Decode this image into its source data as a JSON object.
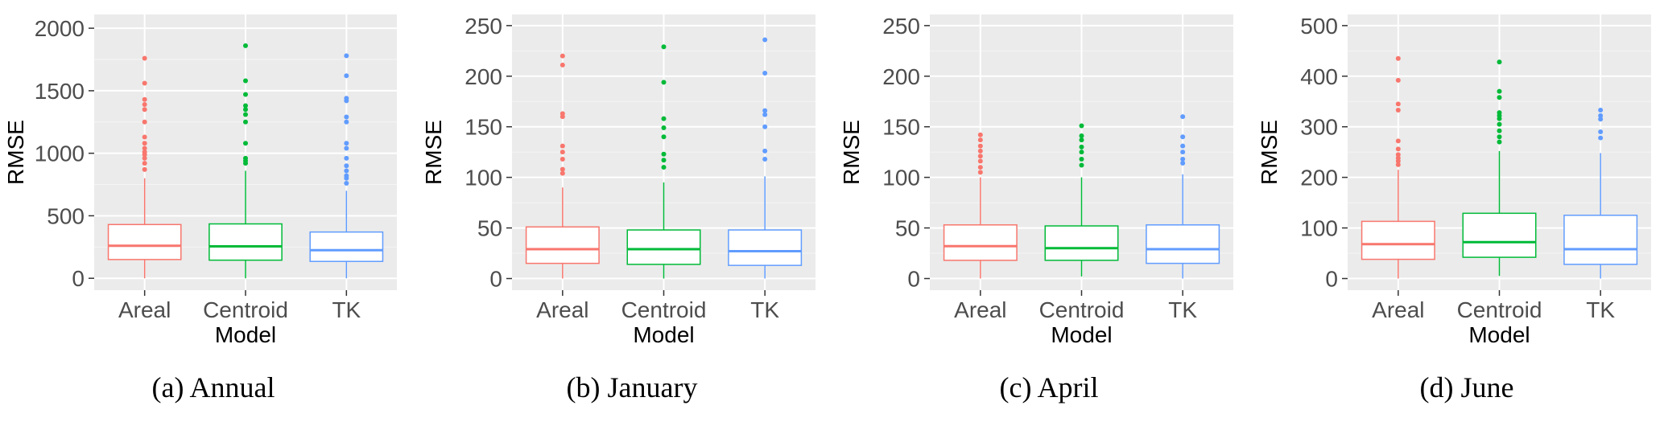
{
  "style": {
    "panel_bg": "#ebebeb",
    "grid_major": "#ffffff",
    "grid_minor": "#f5f5f5",
    "series_colors": {
      "Areal": "#f8766d",
      "Centroid": "#00ba38",
      "TK": "#619cff"
    }
  },
  "chart_data": [
    {
      "type": "box",
      "caption": "(a) Annual",
      "xlabel": "Model",
      "ylabel": "RMSE",
      "categories": [
        "Areal",
        "Centroid",
        "TK"
      ],
      "ylim": [
        -95,
        2110
      ],
      "yticks": [
        0,
        500,
        1000,
        1500,
        2000
      ],
      "yticklabels": [
        "0",
        "500",
        "1000",
        "1500",
        "2000"
      ],
      "boxes": [
        {
          "name": "Areal",
          "low": 0,
          "q1": 150,
          "median": 260,
          "q3": 430,
          "high": 800,
          "outliers": [
            870,
            920,
            960,
            990,
            1010,
            1040,
            1080,
            1130,
            1250,
            1350,
            1390,
            1430,
            1560,
            1760
          ]
        },
        {
          "name": "Centroid",
          "low": 0,
          "q1": 145,
          "median": 255,
          "q3": 435,
          "high": 860,
          "outliers": [
            920,
            940,
            960,
            1080,
            1250,
            1310,
            1350,
            1380,
            1470,
            1580,
            1860
          ]
        },
        {
          "name": "TK",
          "low": 0,
          "q1": 135,
          "median": 225,
          "q3": 370,
          "high": 700,
          "outliers": [
            760,
            800,
            820,
            860,
            900,
            960,
            1040,
            1080,
            1250,
            1290,
            1420,
            1440,
            1620,
            1780
          ]
        }
      ]
    },
    {
      "type": "box",
      "caption": "(b) January",
      "xlabel": "Model",
      "ylabel": "RMSE",
      "categories": [
        "Areal",
        "Centroid",
        "TK"
      ],
      "ylim": [
        -11.5,
        261
      ],
      "yticks": [
        0,
        50,
        100,
        150,
        200,
        250
      ],
      "yticklabels": [
        "0",
        "50",
        "100",
        "150",
        "200",
        "250"
      ],
      "boxes": [
        {
          "name": "Areal",
          "low": 0,
          "q1": 15,
          "median": 29,
          "q3": 51,
          "high": 90,
          "outliers": [
            104,
            108,
            118,
            125,
            131,
            160,
            163,
            211,
            220
          ]
        },
        {
          "name": "Centroid",
          "low": 0,
          "q1": 14,
          "median": 29,
          "q3": 48,
          "high": 95,
          "outliers": [
            110,
            117,
            123,
            140,
            149,
            158,
            194,
            229
          ]
        },
        {
          "name": "TK",
          "low": 0,
          "q1": 13,
          "median": 27,
          "q3": 48,
          "high": 101,
          "outliers": [
            118,
            126,
            150,
            162,
            166,
            203,
            236
          ]
        }
      ]
    },
    {
      "type": "box",
      "caption": "(c) April",
      "xlabel": "Model",
      "ylabel": "RMSE",
      "categories": [
        "Areal",
        "Centroid",
        "TK"
      ],
      "ylim": [
        -11.5,
        261
      ],
      "yticks": [
        0,
        50,
        100,
        150,
        200,
        250
      ],
      "yticklabels": [
        "0",
        "50",
        "100",
        "150",
        "200",
        "250"
      ],
      "boxes": [
        {
          "name": "Areal",
          "low": 0,
          "q1": 18,
          "median": 32,
          "q3": 53,
          "high": 100,
          "outliers": [
            105,
            110,
            116,
            121,
            126,
            131,
            137,
            142
          ]
        },
        {
          "name": "Centroid",
          "low": 2,
          "q1": 18,
          "median": 30,
          "q3": 52,
          "high": 100,
          "outliers": [
            112,
            118,
            125,
            130,
            137,
            141,
            151
          ]
        },
        {
          "name": "TK",
          "low": 0,
          "q1": 15,
          "median": 29,
          "q3": 53,
          "high": 103,
          "outliers": [
            114,
            118,
            125,
            131,
            140,
            160
          ]
        }
      ]
    },
    {
      "type": "box",
      "caption": "(d) June",
      "xlabel": "Model",
      "ylabel": "RMSE",
      "categories": [
        "Areal",
        "Centroid",
        "TK"
      ],
      "ylim": [
        -23,
        522
      ],
      "yticks": [
        0,
        100,
        200,
        300,
        400,
        500
      ],
      "yticklabels": [
        "0",
        "100",
        "200",
        "300",
        "400",
        "500"
      ],
      "boxes": [
        {
          "name": "Areal",
          "low": 0,
          "q1": 38,
          "median": 68,
          "q3": 113,
          "high": 215,
          "outliers": [
            225,
            232,
            238,
            245,
            256,
            272,
            333,
            345,
            392,
            435
          ]
        },
        {
          "name": "Centroid",
          "low": 5,
          "q1": 42,
          "median": 72,
          "q3": 129,
          "high": 252,
          "outliers": [
            270,
            280,
            292,
            305,
            316,
            322,
            328,
            358,
            370,
            428
          ]
        },
        {
          "name": "TK",
          "low": 0,
          "q1": 28,
          "median": 58,
          "q3": 125,
          "high": 248,
          "outliers": [
            278,
            290,
            315,
            322,
            333
          ]
        }
      ]
    }
  ]
}
